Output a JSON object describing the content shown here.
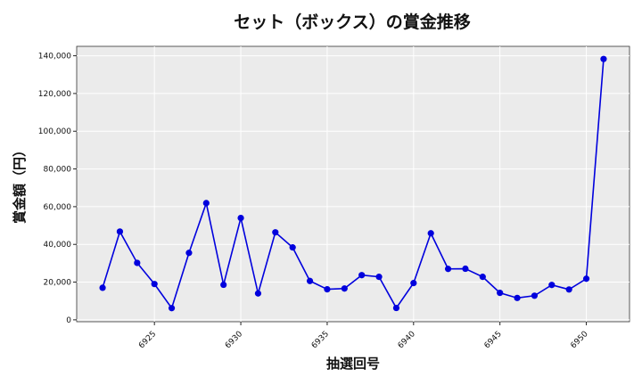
{
  "chart_data": {
    "type": "line",
    "title": "セット（ボックス）の賞金推移",
    "xlabel": "抽選回号",
    "ylabel": "賞金額（円）",
    "x": [
      6922,
      6923,
      6924,
      6925,
      6926,
      6927,
      6928,
      6929,
      6930,
      6931,
      6932,
      6933,
      6934,
      6935,
      6936,
      6937,
      6938,
      6939,
      6940,
      6941,
      6942,
      6943,
      6944,
      6945,
      6946,
      6947,
      6948,
      6949,
      6950,
      6951
    ],
    "series": [
      {
        "values": [
          17000,
          46800,
          30200,
          19000,
          6200,
          35500,
          61900,
          18600,
          54000,
          14000,
          46400,
          38400,
          20600,
          16200,
          16600,
          23700,
          22800,
          6300,
          19500,
          45900,
          27000,
          27100,
          22800,
          14300,
          11600,
          12800,
          18500,
          16100,
          21800,
          138300
        ],
        "color": "#0000dd"
      }
    ],
    "xticks": [
      6925,
      6930,
      6935,
      6940,
      6945,
      6950
    ],
    "yticks": [
      0,
      20000,
      40000,
      60000,
      80000,
      100000,
      120000,
      140000
    ],
    "xlim": [
      6920.5,
      6952.5
    ],
    "ylim": [
      -1000,
      145000
    ],
    "grid": true,
    "legend": "none",
    "background": "#ebebeb",
    "line_color": "#0000dd"
  }
}
